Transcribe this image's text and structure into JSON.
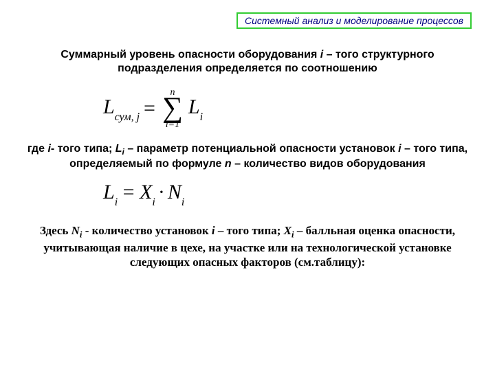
{
  "header": {
    "title": "Системный анализ и моделирование процессов",
    "border_color": "#33cc33",
    "text_color": "#000080"
  },
  "paragraph1": {
    "prefix": "Суммарный  уровень опасности оборудования ",
    "var_i": "i",
    "suffix": " – того структурного подразделения  определяется  по соотношению"
  },
  "formula1": {
    "lhs_symbol": "L",
    "lhs_sub": "сум, j",
    "eq": "=",
    "sum_top": "n",
    "sigma": "∑",
    "sum_bot": "i=1",
    "rhs_symbol": "L",
    "rhs_sub": "i"
  },
  "paragraph2": {
    "t1": "где ",
    "i1": "i",
    "t2": "- того типа;   ",
    "L": "L",
    "Lsub": "i",
    "t3": " – параметр потенциальной опасности установок ",
    "i2": "i",
    "t4": " – того типа, определяемый по формуле ",
    "n": "n",
    "t5": " – количество видов оборудования"
  },
  "formula2": {
    "L": "L",
    "Lsub": "i",
    "eq": " = ",
    "X": "X",
    "Xsub": "i",
    "dot": "·",
    "N": "N",
    "Nsub": "i"
  },
  "paragraph3": {
    "t1": "Здесь ",
    "N": "N",
    "Nsub": "i",
    "t2": " - количество установок ",
    "i": "i",
    "t3": " – того типа;  ",
    "X": "X",
    "Xsub": "i",
    "t4": " – балльная оценка опасности, учитывающая  наличие в цехе, на участке или на технологической установке следующих опасных факторов (см.таблицу):"
  }
}
